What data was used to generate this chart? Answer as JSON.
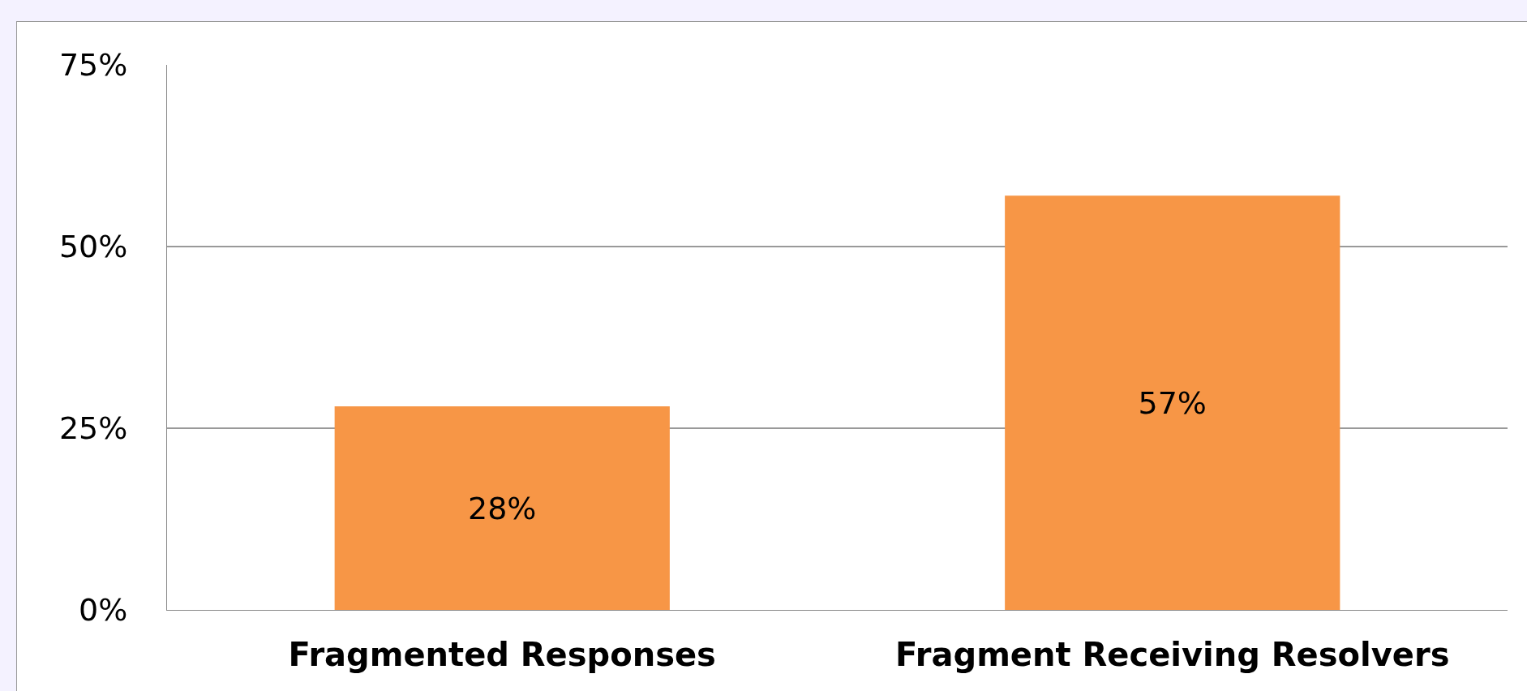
{
  "chart_data": {
    "type": "bar",
    "categories": [
      "Fragmented Responses",
      "Fragment Receiving Resolvers"
    ],
    "values": [
      28,
      57
    ],
    "color": "#f79646",
    "value_labels": [
      "28%",
      "57%"
    ],
    "ylim": [
      0,
      75
    ],
    "yticks": [
      {
        "value": 0,
        "label": "0%"
      },
      {
        "value": 25,
        "label": "25%"
      },
      {
        "value": 50,
        "label": "50%"
      },
      {
        "value": 75,
        "label": "75%"
      }
    ],
    "grid": "y"
  }
}
